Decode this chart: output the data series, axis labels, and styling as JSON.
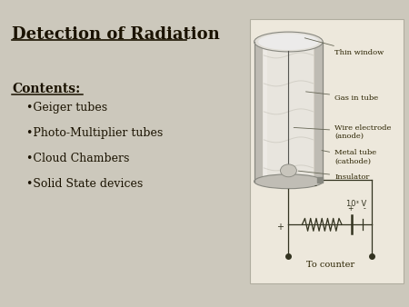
{
  "background_color": "#ccc8bc",
  "title": "Detection of Radiation",
  "title_fontsize": 13,
  "contents_label": "Contents:",
  "contents_fontsize": 10,
  "bullet_items": [
    "Geiger tubes",
    "Photo-Multiplier tubes",
    "Cloud Chambers",
    "Solid State devices"
  ],
  "bullet_fontsize": 9,
  "panel_color": "#ede8dc",
  "panel_edge": "#b0ad9f",
  "text_color": "#1a1200",
  "diagram_text_color": "#2a2200",
  "label_fontsize": 6.0,
  "circuit_color": "#333320"
}
